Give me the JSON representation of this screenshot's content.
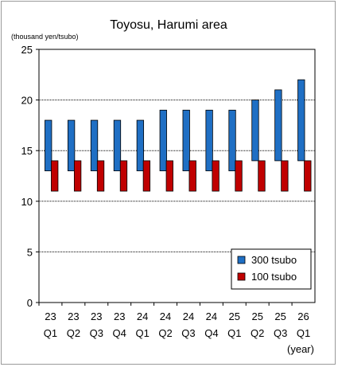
{
  "chart_data": {
    "type": "bar",
    "subtype": "floating-range",
    "title": "Toyosu, Harumi  area",
    "ylabel": "(thousand yen/tsubo)",
    "xlabel": "(year)",
    "ylim": [
      0,
      25
    ],
    "yticks": [
      0,
      5,
      10,
      15,
      20,
      25
    ],
    "grid": true,
    "legend_position": "bottom-right",
    "categories": [
      {
        "year": "23",
        "quarter": "Q1"
      },
      {
        "year": "23",
        "quarter": "Q2"
      },
      {
        "year": "23",
        "quarter": "Q3"
      },
      {
        "year": "23",
        "quarter": "Q4"
      },
      {
        "year": "24",
        "quarter": "Q1"
      },
      {
        "year": "24",
        "quarter": "Q2"
      },
      {
        "year": "24",
        "quarter": "Q3"
      },
      {
        "year": "24",
        "quarter": "Q4"
      },
      {
        "year": "25",
        "quarter": "Q1"
      },
      {
        "year": "25",
        "quarter": "Q2"
      },
      {
        "year": "25",
        "quarter": "Q3"
      },
      {
        "year": "26",
        "quarter": "Q1"
      }
    ],
    "series": [
      {
        "name": "300 tsubo",
        "color": "#1f6fc4",
        "low": [
          13,
          13,
          13,
          13,
          13,
          13,
          13,
          13,
          13,
          14,
          14,
          14
        ],
        "high": [
          18,
          18,
          18,
          18,
          18,
          19,
          19,
          19,
          19,
          20,
          21,
          22
        ]
      },
      {
        "name": "100 tsubo",
        "color": "#c00000",
        "low": [
          11,
          11,
          11,
          11,
          11,
          11,
          11,
          11,
          11,
          11,
          11,
          11
        ],
        "high": [
          14,
          14,
          14,
          14,
          14,
          14,
          14,
          14,
          14,
          14,
          14,
          14
        ]
      }
    ]
  }
}
